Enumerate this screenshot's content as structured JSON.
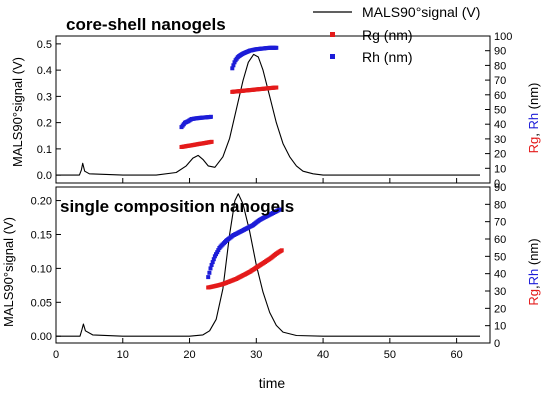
{
  "figure": {
    "xlabel": "time",
    "legend": {
      "placement": "top-right",
      "entries": [
        "MALS90°signal (V)",
        "Rg (nm)",
        "Rh (nm)"
      ]
    },
    "colors": {
      "signal": "#000000",
      "rg": "#e41b1b",
      "rh": "#1c1cd8"
    }
  },
  "chart_data": [
    {
      "type": "line",
      "title": "core-shell nanogels",
      "xlabel": "time",
      "ylabel": "MALS90°signal (V)",
      "y2label": [
        "Rg",
        ", ",
        "Rh",
        " (nm)"
      ],
      "xlim": [
        0,
        65
      ],
      "ylim": [
        -0.03,
        0.53
      ],
      "y2lim": [
        0,
        100
      ],
      "xticks": [
        "0",
        "10",
        "20",
        "30",
        "40",
        "50",
        "60"
      ],
      "yticks": [
        "0.0",
        "0.1",
        "0.2",
        "0.3",
        "0.4",
        "0.5"
      ],
      "y2ticks": [
        "0",
        "10",
        "20",
        "30",
        "40",
        "50",
        "60",
        "70",
        "80",
        "90",
        "100"
      ],
      "series": [
        {
          "name": "MALS90°signal (V)",
          "axis": "left",
          "x": [
            0,
            3.5,
            3.8,
            4.0,
            4.3,
            5,
            10,
            15,
            18,
            19.5,
            20.5,
            21.3,
            22,
            22.8,
            23.8,
            25,
            26,
            27,
            28,
            28.8,
            29.6,
            30.3,
            31,
            32,
            33,
            34,
            35,
            36,
            37,
            38.5,
            40,
            45,
            50,
            55,
            60,
            63.5
          ],
          "y": [
            0.0,
            0.0,
            0.02,
            0.045,
            0.015,
            0.005,
            0.0,
            0.0,
            0.01,
            0.035,
            0.065,
            0.075,
            0.06,
            0.035,
            0.03,
            0.07,
            0.14,
            0.25,
            0.36,
            0.43,
            0.46,
            0.45,
            0.4,
            0.3,
            0.2,
            0.12,
            0.07,
            0.035,
            0.015,
            0.005,
            0.0,
            0.0,
            0.0,
            0.0,
            0.0,
            0.0
          ]
        },
        {
          "name": "Rg (nm)",
          "axis": "right",
          "segments": [
            {
              "x": [
                18.8,
                23.3
              ],
              "y": [
                24.5,
                28.0
              ]
            },
            {
              "x": [
                26.4,
                33.0
              ],
              "y": [
                62.0,
                65.0
              ]
            }
          ]
        },
        {
          "name": "Rh (nm)",
          "axis": "right",
          "segments": [
            {
              "x": [
                18.8,
                19.3,
                19.8,
                20.3,
                21,
                22,
                23.2
              ],
              "y": [
                38.0,
                41.0,
                42.0,
                43.5,
                44.0,
                44.5,
                45.0
              ]
            },
            {
              "x": [
                26.4,
                26.8,
                27.3,
                28,
                29,
                30,
                31,
                32,
                33.0
              ],
              "y": [
                78.0,
                83.0,
                86.0,
                88.0,
                90.0,
                91.0,
                91.5,
                92.0,
                92.0
              ]
            }
          ]
        }
      ]
    },
    {
      "type": "line",
      "title": "single composition nanogels",
      "xlabel": "time",
      "ylabel": "MALS90°signal (V)",
      "y2label": [
        "Rg",
        ",",
        "Rh",
        " (nm)"
      ],
      "xlim": [
        0,
        65
      ],
      "ylim": [
        -0.01,
        0.22
      ],
      "y2lim": [
        0,
        90
      ],
      "xticks": [
        "0",
        "10",
        "20",
        "30",
        "40",
        "50",
        "60"
      ],
      "yticks": [
        "0.00",
        "0.05",
        "0.10",
        "0.15",
        "0.20"
      ],
      "y2ticks": [
        "0",
        "10",
        "20",
        "30",
        "40",
        "50",
        "60",
        "70",
        "80",
        "90"
      ],
      "series": [
        {
          "name": "MALS90°signal (V)",
          "axis": "left",
          "x": [
            0,
            3.6,
            3.9,
            4.1,
            4.4,
            5.5,
            10,
            15,
            20,
            22,
            23,
            24,
            25,
            26,
            26.8,
            27.3,
            28,
            29,
            30,
            31,
            32,
            33,
            34,
            36,
            40,
            50,
            60,
            63.5
          ],
          "y": [
            0.0,
            0.0,
            0.01,
            0.018,
            0.008,
            0.002,
            0.0,
            0.0,
            0.0,
            0.002,
            0.008,
            0.025,
            0.07,
            0.15,
            0.2,
            0.21,
            0.195,
            0.155,
            0.105,
            0.065,
            0.035,
            0.016,
            0.006,
            0.001,
            0.0,
            0.0,
            0.0,
            0.0
          ]
        },
        {
          "name": "Rg (nm)",
          "axis": "right",
          "x": [
            22.8,
            24,
            25,
            26,
            27,
            28,
            29,
            30,
            31,
            32,
            33,
            33.8
          ],
          "y": [
            32.0,
            33.0,
            34.0,
            35.5,
            37.0,
            39.0,
            41.0,
            43.5,
            46.0,
            48.5,
            51.5,
            53.5
          ]
        },
        {
          "name": "Rh (nm)",
          "axis": "right",
          "x": [
            22.8,
            23.2,
            23.8,
            24.5,
            25.5,
            26.5,
            27.5,
            28.5,
            29.5,
            30.5,
            31.5,
            32.5,
            33.5
          ],
          "y": [
            38.0,
            44.0,
            50.0,
            55.0,
            59.0,
            62.0,
            64.0,
            66.0,
            68.0,
            71.0,
            73.0,
            75.0,
            77.0
          ]
        }
      ]
    }
  ]
}
